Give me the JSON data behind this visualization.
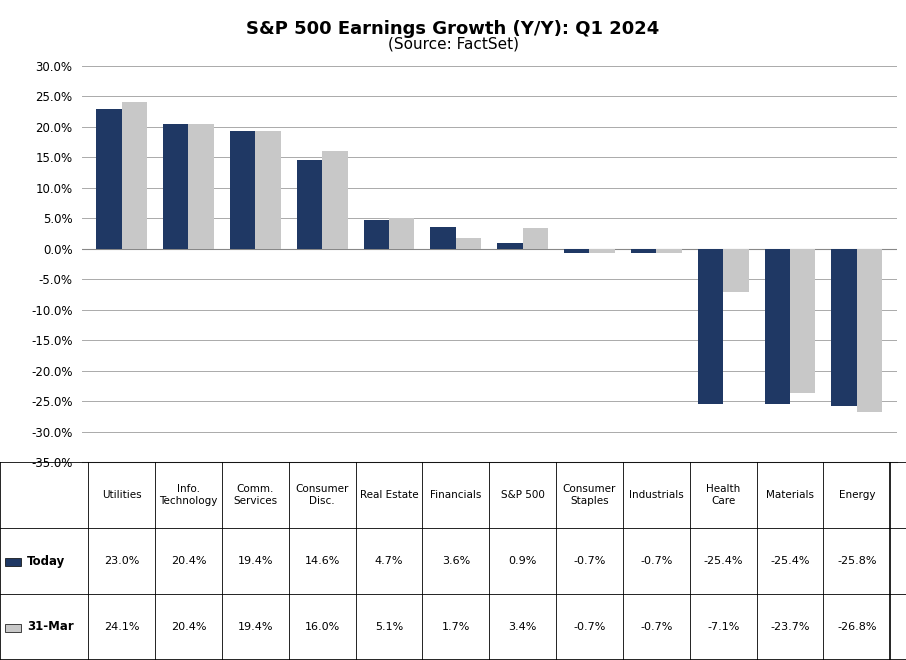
{
  "title": "S&P 500 Earnings Growth (Y/Y): Q1 2024",
  "subtitle": "(Source: FactSet)",
  "categories": [
    "Utilities",
    "Info.\nTechnology",
    "Comm.\nServices",
    "Consumer\nDisc.",
    "Real Estate",
    "Financials",
    "S&P 500",
    "Consumer\nStaples",
    "Industrials",
    "Health\nCare",
    "Materials",
    "Energy"
  ],
  "today_values": [
    23.0,
    20.4,
    19.4,
    14.6,
    4.7,
    3.6,
    0.9,
    -0.7,
    -0.7,
    -25.4,
    -25.4,
    -25.8
  ],
  "mar31_values": [
    24.1,
    20.4,
    19.4,
    16.0,
    5.1,
    1.7,
    3.4,
    -0.7,
    -0.7,
    -7.1,
    -23.7,
    -26.8
  ],
  "today_color": "#1F3864",
  "mar31_color": "#C8C8C8",
  "today_label": "Today",
  "mar31_label": "31-Mar",
  "ylim_min": -35.0,
  "ylim_max": 30.0,
  "yticks": [
    -35.0,
    -30.0,
    -25.0,
    -20.0,
    -15.0,
    -10.0,
    -5.0,
    0.0,
    5.0,
    10.0,
    15.0,
    20.0,
    25.0,
    30.0
  ],
  "today_row": [
    "23.0%",
    "20.4%",
    "19.4%",
    "14.6%",
    "4.7%",
    "3.6%",
    "0.9%",
    "-0.7%",
    "-0.7%",
    "-25.4%",
    "-25.4%",
    "-25.8%"
  ],
  "mar31_row": [
    "24.1%",
    "20.4%",
    "19.4%",
    "16.0%",
    "5.1%",
    "1.7%",
    "3.4%",
    "-0.7%",
    "-0.7%",
    "-7.1%",
    "-23.7%",
    "-26.8%"
  ],
  "background_color": "#FFFFFF",
  "grid_color": "#AAAAAA"
}
